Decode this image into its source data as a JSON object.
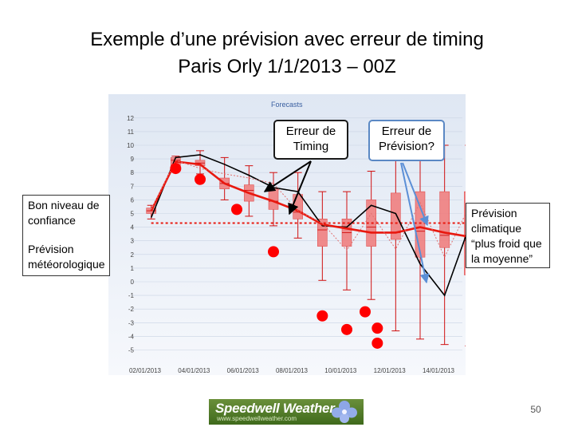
{
  "slide": {
    "title_line1": "Exemple d’une prévision avec erreur de timing",
    "title_line2": "Paris Orly 1/1/2013 – 00Z",
    "page_number": "50"
  },
  "chart_data": {
    "type": "box",
    "title": "Forecasts",
    "ylim": [
      -6,
      12.5
    ],
    "yticks": [
      "12",
      "11",
      "10",
      "9",
      "8",
      "7",
      "6",
      "5",
      "4",
      "3",
      "2",
      "1",
      "0",
      "-1",
      "-2",
      "-3",
      "-4",
      "-5"
    ],
    "x_ticks": [
      {
        "label": "02/01/2013",
        "x": 2
      },
      {
        "label": "04/01/2013",
        "x": 4
      },
      {
        "label": "06/01/2013",
        "x": 6
      },
      {
        "label": "08/01/2013",
        "x": 8
      },
      {
        "label": "10/01/2013",
        "x": 10
      },
      {
        "label": "12/01/2013",
        "x": 12
      },
      {
        "label": "14/01/2013",
        "x": 14
      }
    ],
    "boxes": [
      {
        "x": 2.25,
        "q1": 5,
        "q3": 5.4,
        "median": 5.2,
        "min": 4.6,
        "max": 5.6
      },
      {
        "x": 3.25,
        "q1": 8.5,
        "q3": 9.1,
        "median": 8.9,
        "min": 8.1,
        "max": 9.2
      },
      {
        "x": 4.25,
        "q1": 8.5,
        "q3": 8.9,
        "median": 8.7,
        "min": 7.9,
        "max": 9.6
      },
      {
        "x": 5.25,
        "q1": 6.8,
        "q3": 7.6,
        "median": 7.2,
        "min": 6,
        "max": 9.1
      },
      {
        "x": 6.25,
        "q1": 5.9,
        "q3": 7.1,
        "median": 6.7,
        "min": 4.8,
        "max": 8.5
      },
      {
        "x": 7.25,
        "q1": 5.3,
        "q3": 6.8,
        "median": 5.9,
        "min": 4.1,
        "max": 8
      },
      {
        "x": 8.25,
        "q1": 4.6,
        "q3": 6.4,
        "median": 5.1,
        "min": 3.2,
        "max": 8
      },
      {
        "x": 9.25,
        "q1": 2.6,
        "q3": 4.6,
        "median": 3.8,
        "min": 0.1,
        "max": 6.6
      },
      {
        "x": 10.25,
        "q1": 2.6,
        "q3": 4.6,
        "median": 3.6,
        "min": -0.6,
        "max": 6.6
      },
      {
        "x": 11.25,
        "q1": 2.6,
        "q3": 6,
        "median": 4,
        "min": -1.3,
        "max": 8.1
      },
      {
        "x": 12.25,
        "q1": 3.1,
        "q3": 6.5,
        "median": 3.6,
        "min": -3.6,
        "max": 9.9
      },
      {
        "x": 13.25,
        "q1": 1.8,
        "q3": 6.6,
        "median": 3.7,
        "min": -4.2,
        "max": 9.6
      },
      {
        "x": 14.25,
        "q1": 2.5,
        "q3": 6.6,
        "median": 3.4,
        "min": -4.6,
        "max": 10
      },
      {
        "x": 15.25,
        "q1": 0.5,
        "q3": 6.6,
        "median": 3,
        "min": -4.7,
        "max": 10
      }
    ],
    "series": [
      {
        "kind": "observed",
        "color": "#000000",
        "x": [
          2.25,
          3.25,
          4.25,
          5.25,
          6.25,
          7.25,
          8.25,
          9.25,
          10.25,
          11.25,
          12.25,
          13.25,
          14.25,
          15.25
        ],
        "y": [
          4.7,
          9.1,
          9.3,
          8.6,
          7.8,
          6.9,
          6.6,
          4.1,
          4,
          5.6,
          5,
          1.3,
          -1,
          4
        ]
      },
      {
        "kind": "ensemble-mean",
        "color": "#e8180f",
        "x": [
          2.25,
          3.25,
          4.25,
          5.25,
          6.25,
          7.25,
          8.25,
          9.25,
          10.25,
          11.25,
          12.25,
          13.25,
          14.25,
          15.25
        ],
        "y": [
          5.2,
          8.8,
          8.6,
          7.2,
          6.5,
          5.9,
          5.2,
          4.2,
          3.9,
          3.6,
          3.6,
          4,
          3.6,
          3.3
        ]
      },
      {
        "kind": "control",
        "color": "#e07070",
        "x": [
          2.25,
          3.25,
          4.25,
          5.25,
          6.25,
          7.25,
          8.25,
          9.25,
          10.25,
          11.25,
          12.25,
          13.25,
          14.25,
          15.25
        ],
        "y": [
          5.3,
          8.9,
          8.3,
          7.9,
          7.6,
          7.2,
          5.2,
          4.3,
          2.3,
          5,
          2.4,
          5.8,
          1.8,
          5.5
        ]
      }
    ],
    "climatology": {
      "color": "#e8180f",
      "x": [
        2.25,
        15.25
      ],
      "y": [
        4.3,
        4.3
      ]
    },
    "observed_points": {
      "color": "#ff0000",
      "x": [
        3.25,
        4.25,
        5.75,
        7.25,
        9.25,
        10.25,
        11,
        11.5,
        11.5
      ],
      "y": [
        8.3,
        7.5,
        5.3,
        2.2,
        -2.5,
        -3.5,
        -2.2,
        -3.4,
        -4.5
      ]
    },
    "annotations": {
      "timing_label": "Erreur de Timing",
      "prevision_label": "Erreur de Prévision?",
      "left_label_1": "Bon niveau de confiance",
      "left_label_2": "Prévision météorologique",
      "right_label": "Prévision climatique “plus froid que la moyenne”"
    }
  },
  "logo": {
    "text": "Speedwell Weather",
    "subtext": "www.speedwellweather.com"
  }
}
